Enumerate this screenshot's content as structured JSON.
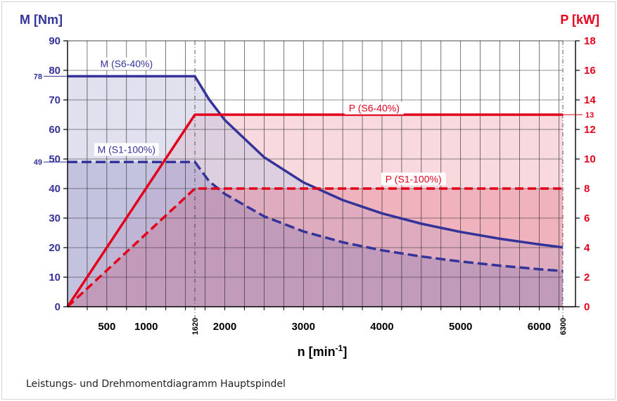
{
  "caption": "Leistungs- und Drehmomentdiagramm Hauptspindel",
  "chart_data": {
    "type": "line",
    "title": "",
    "xlabel": "n [min-1]",
    "xlabel_base": "n [min",
    "xlabel_sup": "-1",
    "xlabel_end": "]",
    "ylabel_left": "M [Nm]",
    "ylabel_right": "P [kW]",
    "xlim": [
      0,
      6300
    ],
    "ylim_left": [
      0,
      90
    ],
    "ylim_right": [
      0,
      18
    ],
    "x_ticks": [
      {
        "value": 500,
        "label": "500",
        "vertical": false
      },
      {
        "value": 1000,
        "label": "1000",
        "vertical": false
      },
      {
        "value": 1620,
        "label": "1620",
        "vertical": true
      },
      {
        "value": 2000,
        "label": "2000",
        "vertical": false
      },
      {
        "value": 3000,
        "label": "3000",
        "vertical": false
      },
      {
        "value": 4000,
        "label": "4000",
        "vertical": false
      },
      {
        "value": 5000,
        "label": "5000",
        "vertical": false
      },
      {
        "value": 6000,
        "label": "6000",
        "vertical": false
      },
      {
        "value": 6300,
        "label": "6300",
        "vertical": true
      }
    ],
    "y_left_ticks": [
      0,
      10,
      20,
      30,
      40,
      50,
      60,
      70,
      80,
      90
    ],
    "y_left_extra": [
      {
        "value": 78,
        "label": "78"
      },
      {
        "value": 49,
        "label": "49"
      }
    ],
    "y_right_ticks": [
      0,
      2,
      4,
      6,
      8,
      10,
      12,
      14,
      16,
      18
    ],
    "y_right_extra": [
      {
        "value": 13,
        "label": "13"
      }
    ],
    "grid": true,
    "colors": {
      "torque": "#333399",
      "power": "#e3001b",
      "torque_fill": "#c7c7e1",
      "power_fill": "#f6ccd2"
    },
    "series": [
      {
        "name": "M (S6-40%)",
        "axis": "left",
        "dash": false,
        "label_x": 750,
        "label_y": 82,
        "x": [
          0,
          1620,
          1800,
          2000,
          2500,
          3000,
          3500,
          4000,
          4500,
          5000,
          5500,
          6000,
          6300
        ],
        "y": [
          78,
          78,
          70.2,
          63.2,
          50.6,
          42.1,
          36.1,
          31.6,
          28.1,
          25.3,
          23.0,
          21.1,
          20.1
        ]
      },
      {
        "name": "M (S1-100%)",
        "axis": "left",
        "dash": true,
        "label_x": 750,
        "label_y": 53,
        "x": [
          0,
          1620,
          1800,
          2000,
          2500,
          3000,
          3500,
          4000,
          4500,
          5000,
          5500,
          6000,
          6300
        ],
        "y": [
          49,
          49,
          42.5,
          38.2,
          30.6,
          25.5,
          21.8,
          19.1,
          17.0,
          15.3,
          13.9,
          12.7,
          12.1
        ]
      },
      {
        "name": "P (S6-40%)",
        "axis": "right",
        "dash": false,
        "label_x": 3900,
        "label_y": 13.4,
        "x": [
          0,
          1620,
          6300
        ],
        "y": [
          0,
          13,
          13
        ]
      },
      {
        "name": "P (S1-100%)",
        "axis": "right",
        "dash": true,
        "label_x": 4400,
        "label_y": 8.6,
        "x": [
          0,
          1620,
          6300
        ],
        "y": [
          0,
          8,
          8
        ]
      }
    ]
  }
}
